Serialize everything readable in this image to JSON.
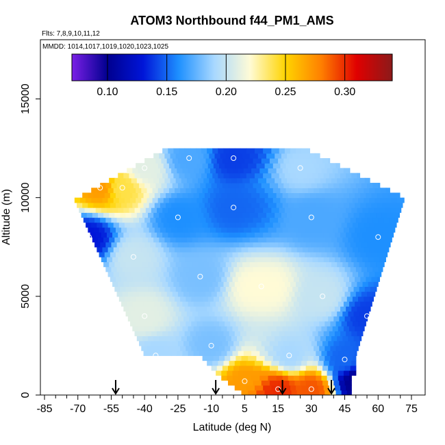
{
  "chart_data": {
    "type": "heatmap",
    "title": "ATOM3 Northbound f44_PM1_AMS",
    "subtitle_flights": "Flts: 7,8,9,10,11,12",
    "subtitle_dates": "MMDD: 1014,1017,1019,1020,1023,1025",
    "xlabel": "Latitude (deg N)",
    "ylabel": "Altitude (m)",
    "xlim": [
      -85,
      85
    ],
    "ylim": [
      0,
      18000
    ],
    "x_ticks": [
      -85,
      -70,
      -55,
      -40,
      -25,
      -10,
      5,
      15,
      30,
      45,
      60,
      75
    ],
    "y_ticks": [
      0,
      5000,
      10000,
      15000
    ],
    "colorbar": {
      "range": [
        0.07,
        0.34
      ],
      "ticks": [
        0.1,
        0.15,
        0.2,
        0.25,
        0.3
      ],
      "tick_labels": [
        "0.10",
        "0.15",
        "0.20",
        "0.25",
        "0.30"
      ],
      "colors": [
        "#7a1fe6",
        "#00008f",
        "#0015d8",
        "#1e90ff",
        "#a8d8ff",
        "#fffbd6",
        "#ffd400",
        "#ff8000",
        "#e00000",
        "#8b1a1a"
      ]
    },
    "profile_arrows_lat": [
      -53,
      -8,
      17,
      39
    ],
    "cross_section_cells": [
      {
        "lat": -60,
        "alt": 10500,
        "value": 0.27
      },
      {
        "lat": -50,
        "alt": 10500,
        "value": 0.24
      },
      {
        "lat": -40,
        "alt": 11500,
        "value": 0.21
      },
      {
        "lat": -20,
        "alt": 12000,
        "value": 0.17
      },
      {
        "lat": 0,
        "alt": 12000,
        "value": 0.14
      },
      {
        "lat": 25,
        "alt": 11500,
        "value": 0.19
      },
      {
        "lat": -65,
        "alt": 8000,
        "value": 0.13
      },
      {
        "lat": -45,
        "alt": 7000,
        "value": 0.2
      },
      {
        "lat": -25,
        "alt": 9000,
        "value": 0.16
      },
      {
        "lat": 0,
        "alt": 9500,
        "value": 0.15
      },
      {
        "lat": 30,
        "alt": 9000,
        "value": 0.17
      },
      {
        "lat": 60,
        "alt": 8000,
        "value": 0.16
      },
      {
        "lat": -40,
        "alt": 4000,
        "value": 0.21
      },
      {
        "lat": -15,
        "alt": 6000,
        "value": 0.18
      },
      {
        "lat": 10,
        "alt": 5500,
        "value": 0.22
      },
      {
        "lat": 35,
        "alt": 5000,
        "value": 0.2
      },
      {
        "lat": 55,
        "alt": 4000,
        "value": 0.14
      },
      {
        "lat": -35,
        "alt": 2000,
        "value": 0.19
      },
      {
        "lat": -10,
        "alt": 2500,
        "value": 0.18
      },
      {
        "lat": 20,
        "alt": 2000,
        "value": 0.19
      },
      {
        "lat": 45,
        "alt": 1800,
        "value": 0.15
      },
      {
        "lat": 5,
        "alt": 700,
        "value": 0.27
      },
      {
        "lat": 15,
        "alt": 300,
        "value": 0.3
      },
      {
        "lat": 30,
        "alt": 300,
        "value": 0.29
      },
      {
        "lat": 50,
        "alt": 700,
        "value": 0.1
      }
    ]
  }
}
